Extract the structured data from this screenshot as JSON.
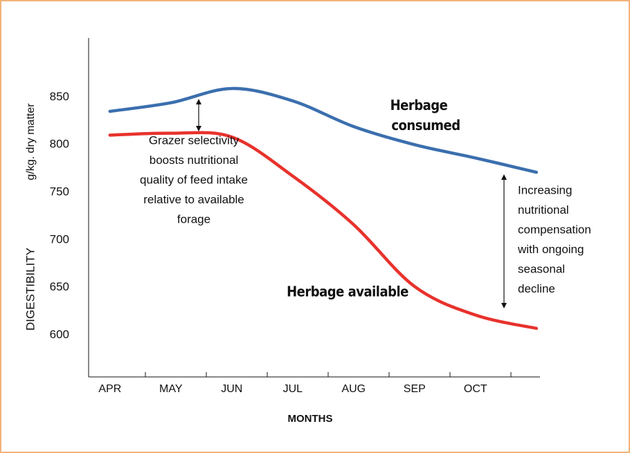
{
  "chart_data": {
    "type": "line",
    "y_label_left": "DIGESTIBILITY",
    "y_label_right": "g/kg. dry matter",
    "x_label": "MONTHS",
    "categories": [
      "APR",
      "MAY",
      "JUN",
      "JUL",
      "AUG",
      "SEP",
      "OCT",
      null
    ],
    "series": [
      {
        "name": "Herbage consumed",
        "color": "#3b6fae",
        "values": [
          835,
          844,
          859,
          846,
          819,
          800,
          786,
          771
        ]
      },
      {
        "name": "Herbage available",
        "color": "#e8322c",
        "values": [
          810,
          812,
          808,
          767,
          716,
          651,
          621,
          607
        ]
      }
    ],
    "ylim": [
      556,
      912
    ],
    "yticks": [
      600,
      650,
      700,
      750,
      800,
      850
    ],
    "annotations": [
      {
        "lines": [
          "Grazer selectivity",
          "boosts nutritional",
          "quality of feed intake",
          "relative to available",
          "forage"
        ]
      },
      {
        "lines": [
          "Increasing",
          "nutritional",
          "compensation",
          "with ongoing",
          "seasonal",
          "decline"
        ]
      }
    ]
  }
}
